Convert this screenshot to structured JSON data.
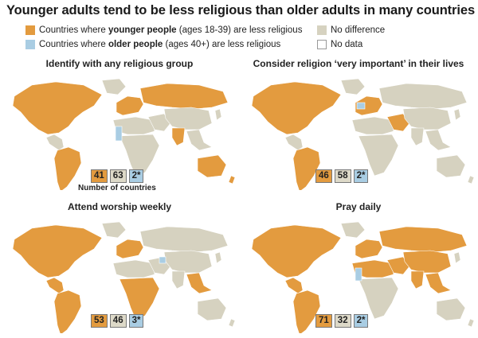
{
  "title": "Younger adults tend to be less religious than older adults in many countries",
  "legend": {
    "younger_pre": "Countries where ",
    "younger_bold": "younger people",
    "younger_post": " (ages 18-39) are less religious",
    "older_pre": "Countries where ",
    "older_bold": "older people",
    "older_post": " (ages 40+) are less religious",
    "no_difference": "No difference",
    "no_data": "No data"
  },
  "colors": {
    "younger_less_religious": "#e39b3f",
    "older_less_religious": "#a9cde3",
    "no_difference": "#d6d2c0",
    "no_data": "#ffffff"
  },
  "counts_note": "Number of countries",
  "panels": [
    {
      "title": "Identify with any religious group",
      "younger": "41",
      "no_diff": "63",
      "older": "2*"
    },
    {
      "title": "Consider religion ‘very important’ in their lives",
      "younger": "46",
      "no_diff": "58",
      "older": "2*"
    },
    {
      "title": "Attend worship weekly",
      "younger": "53",
      "no_diff": "46",
      "older": "3*"
    },
    {
      "title": "Pray daily",
      "younger": "71",
      "no_diff": "32",
      "older": "2*"
    }
  ]
}
